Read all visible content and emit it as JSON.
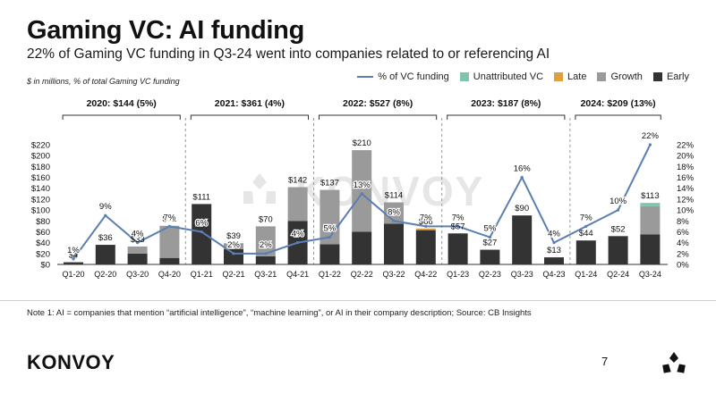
{
  "header": {
    "title": "Gaming VC: AI funding",
    "subtitle": "22% of Gaming VC funding in Q3-24 went into companies related to or referencing AI",
    "units": "$ in millions, % of total Gaming VC funding"
  },
  "legend": {
    "line": "% of VC funding",
    "unattributed": "Unattributed VC",
    "late": "Late",
    "growth": "Growth",
    "early": "Early"
  },
  "colors": {
    "early": "#333333",
    "growth": "#9a9a9a",
    "late": "#e0a040",
    "unattributed": "#7fc4ad",
    "line": "#5a7fb0",
    "divider": "#999999"
  },
  "chart_data": {
    "type": "bar",
    "stacked": true,
    "title": "Gaming VC: AI funding",
    "ylabel": "$ in millions",
    "y2label": "% of total Gaming VC funding",
    "ylim": [
      0,
      220
    ],
    "y2lim": [
      0,
      22
    ],
    "categories": [
      "Q1-20",
      "Q2-20",
      "Q3-20",
      "Q4-20",
      "Q1-21",
      "Q2-21",
      "Q3-21",
      "Q4-21",
      "Q1-22",
      "Q2-22",
      "Q3-22",
      "Q4-22",
      "Q1-23",
      "Q2-23",
      "Q3-23",
      "Q4-23",
      "Q1-24",
      "Q2-24",
      "Q3-24"
    ],
    "totals": [
      4,
      36,
      33,
      71,
      111,
      39,
      70,
      142,
      137,
      210,
      114,
      66,
      57,
      27,
      90,
      13,
      44,
      52,
      113
    ],
    "total_labels": [
      "$4",
      "$36",
      "$33",
      "$71",
      "$111",
      "$39",
      "$70",
      "$142",
      "$137",
      "$210",
      "$114",
      "$66",
      "$57",
      "$27",
      "$90",
      "$13",
      "$44",
      "$52",
      "$113"
    ],
    "series": [
      {
        "name": "Early",
        "values": [
          4,
          36,
          20,
          12,
          111,
          28,
          15,
          80,
          37,
          60,
          75,
          63,
          57,
          27,
          90,
          13,
          44,
          52,
          55
        ]
      },
      {
        "name": "Growth",
        "values": [
          0,
          0,
          13,
          59,
          0,
          11,
          55,
          62,
          100,
          150,
          39,
          0,
          0,
          0,
          0,
          0,
          0,
          0,
          52
        ]
      },
      {
        "name": "Late",
        "values": [
          0,
          0,
          0,
          0,
          0,
          0,
          0,
          0,
          0,
          0,
          0,
          3,
          0,
          0,
          0,
          0,
          0,
          0,
          0
        ]
      },
      {
        "name": "Unattributed VC",
        "values": [
          0,
          0,
          0,
          0,
          0,
          0,
          0,
          0,
          0,
          0,
          0,
          0,
          0,
          0,
          0,
          0,
          0,
          0,
          6
        ]
      }
    ],
    "line": {
      "name": "% of VC funding",
      "values": [
        1,
        9,
        4,
        7,
        6,
        2,
        2,
        4,
        5,
        13,
        8,
        7,
        7,
        5,
        16,
        4,
        7,
        10,
        22
      ],
      "labels": [
        "1%",
        "9%",
        "4%",
        "7%",
        "6%",
        "2%",
        "2%",
        "4%",
        "5%",
        "13%",
        "8%",
        "7%",
        "7%",
        "5%",
        "16%",
        "4%",
        "7%",
        "10%",
        "22%"
      ]
    },
    "y_ticks": [
      "$0",
      "$20",
      "$40",
      "$60",
      "$80",
      "$100",
      "$120",
      "$140",
      "$160",
      "$180",
      "$200",
      "$220"
    ],
    "y2_ticks": [
      "0%",
      "2%",
      "4%",
      "6%",
      "8%",
      "10%",
      "12%",
      "14%",
      "16%",
      "18%",
      "20%",
      "22%"
    ],
    "year_groups": [
      {
        "label": "2020: $144 (5%)",
        "start": 0,
        "end": 3
      },
      {
        "label": "2021: $361 (4%)",
        "start": 4,
        "end": 7
      },
      {
        "label": "2022: $527 (8%)",
        "start": 8,
        "end": 11
      },
      {
        "label": "2023: $187 (8%)",
        "start": 12,
        "end": 15
      },
      {
        "label": "2024: $209 (13%)",
        "start": 16,
        "end": 18
      }
    ]
  },
  "watermark": "KONVOY",
  "footer": {
    "note": "Note 1: AI = companies that mention “artificial intelligence”, “machine learning”, or AI in their company description; Source: CB Insights",
    "logo": "KONVOY",
    "page_number": "7"
  }
}
